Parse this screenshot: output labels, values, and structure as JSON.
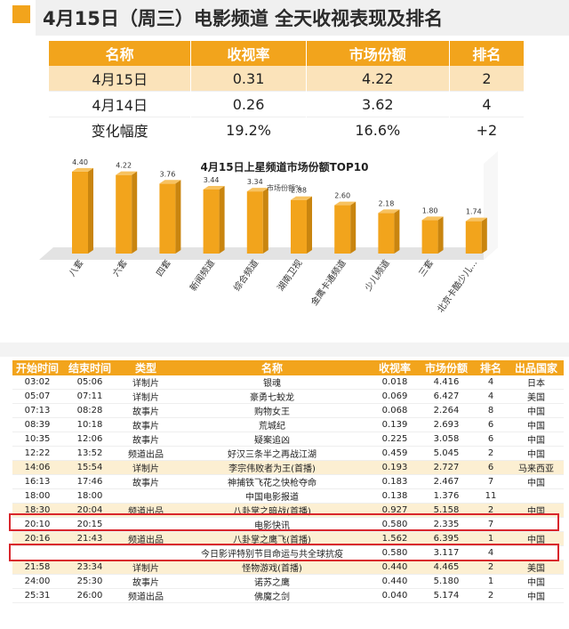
{
  "header": {
    "title": "4月15日（周三）电影频道 全天收视表现及排名"
  },
  "summary": {
    "headers": [
      "名称",
      "收视率",
      "市场份额",
      "排名"
    ],
    "rows": [
      [
        "4月15日",
        "0.31",
        "4.22",
        "2"
      ],
      [
        "4月14日",
        "0.26",
        "3.62",
        "4"
      ],
      [
        "变化幅度",
        "19.2%",
        "16.6%",
        "+2"
      ]
    ]
  },
  "colors": {
    "accent": "#f2a41c",
    "highlight_border": "#d9262c",
    "highlight_row": "#fcefd2"
  },
  "chart_data": {
    "type": "bar",
    "title": "4月15日上星频道市场份额TOP10",
    "series_label": "市场份额%",
    "categories": [
      "八套",
      "六套",
      "四套",
      "新闻频道",
      "综合频道",
      "湖南卫视",
      "金鹰卡通频道",
      "少儿频道",
      "三套",
      "北京卡酷少儿..."
    ],
    "values": [
      4.4,
      4.22,
      3.76,
      3.44,
      3.34,
      2.88,
      2.6,
      2.18,
      1.8,
      1.74
    ],
    "value_labels": [
      "4.40",
      "4.22",
      "3.76",
      "3.44",
      "3.34",
      "2.88",
      "2.60",
      "2.18",
      "1.80",
      "1.74"
    ],
    "ylim": [
      0,
      5
    ],
    "grid": false,
    "legend": "none"
  },
  "schedule": {
    "headers": [
      "开始时间",
      "结束时间",
      "类型",
      "名称",
      "收视率",
      "市场份额",
      "排名",
      "出品国家"
    ],
    "rows": [
      {
        "cells": [
          "03:02",
          "05:06",
          "详制片",
          "银魂",
          "0.018",
          "4.416",
          "4",
          "日本"
        ],
        "hl": false
      },
      {
        "cells": [
          "05:07",
          "07:11",
          "详制片",
          "豪勇七蛟龙",
          "0.069",
          "6.427",
          "4",
          "美国"
        ],
        "hl": false
      },
      {
        "cells": [
          "07:13",
          "08:28",
          "故事片",
          "购物女王",
          "0.068",
          "2.264",
          "8",
          "中国"
        ],
        "hl": false
      },
      {
        "cells": [
          "08:39",
          "10:18",
          "故事片",
          "荒城纪",
          "0.139",
          "2.693",
          "6",
          "中国"
        ],
        "hl": false
      },
      {
        "cells": [
          "10:35",
          "12:06",
          "故事片",
          "疑案追凶",
          "0.225",
          "3.058",
          "6",
          "中国"
        ],
        "hl": false
      },
      {
        "cells": [
          "12:22",
          "13:52",
          "频道出品",
          "好汉三条半之再战江湖",
          "0.459",
          "5.045",
          "2",
          "中国"
        ],
        "hl": false
      },
      {
        "cells": [
          "14:06",
          "15:54",
          "详制片",
          "李宗伟败者为王(首播)",
          "0.193",
          "2.727",
          "6",
          "马来西亚"
        ],
        "hl": true
      },
      {
        "cells": [
          "16:13",
          "17:46",
          "故事片",
          "神捕铁飞花之快枪夺命",
          "0.183",
          "2.467",
          "7",
          "中国"
        ],
        "hl": false
      },
      {
        "cells": [
          "18:00",
          "18:00",
          "",
          "中国电影报道",
          "0.138",
          "1.376",
          "11",
          ""
        ],
        "hl": false
      },
      {
        "cells": [
          "18:30",
          "20:04",
          "频道出品",
          "八卦掌之暗战(首播)",
          "0.927",
          "5.158",
          "2",
          "中国"
        ],
        "hl": true
      },
      {
        "cells": [
          "20:10",
          "20:15",
          "",
          "电影快讯",
          "0.580",
          "2.335",
          "7",
          ""
        ],
        "hl": false
      },
      {
        "cells": [
          "20:16",
          "21:43",
          "频道出品",
          "八卦掌之鹰飞(首播)",
          "1.562",
          "6.395",
          "1",
          "中国"
        ],
        "hl": true
      },
      {
        "cells": [
          "",
          "",
          "",
          "今日影评特别节目命运与共全球抗疫",
          "0.580",
          "3.117",
          "4",
          ""
        ],
        "hl": false
      },
      {
        "cells": [
          "21:58",
          "23:34",
          "详制片",
          "怪物游戏(首播)",
          "0.440",
          "4.465",
          "2",
          "美国"
        ],
        "hl": true
      },
      {
        "cells": [
          "24:00",
          "25:30",
          "故事片",
          "诺苏之鹰",
          "0.440",
          "5.180",
          "1",
          "中国"
        ],
        "hl": false
      },
      {
        "cells": [
          "25:31",
          "26:00",
          "频道出品",
          "佛魔之剑",
          "0.040",
          "5.174",
          "2",
          "中国"
        ],
        "hl": false
      }
    ]
  }
}
